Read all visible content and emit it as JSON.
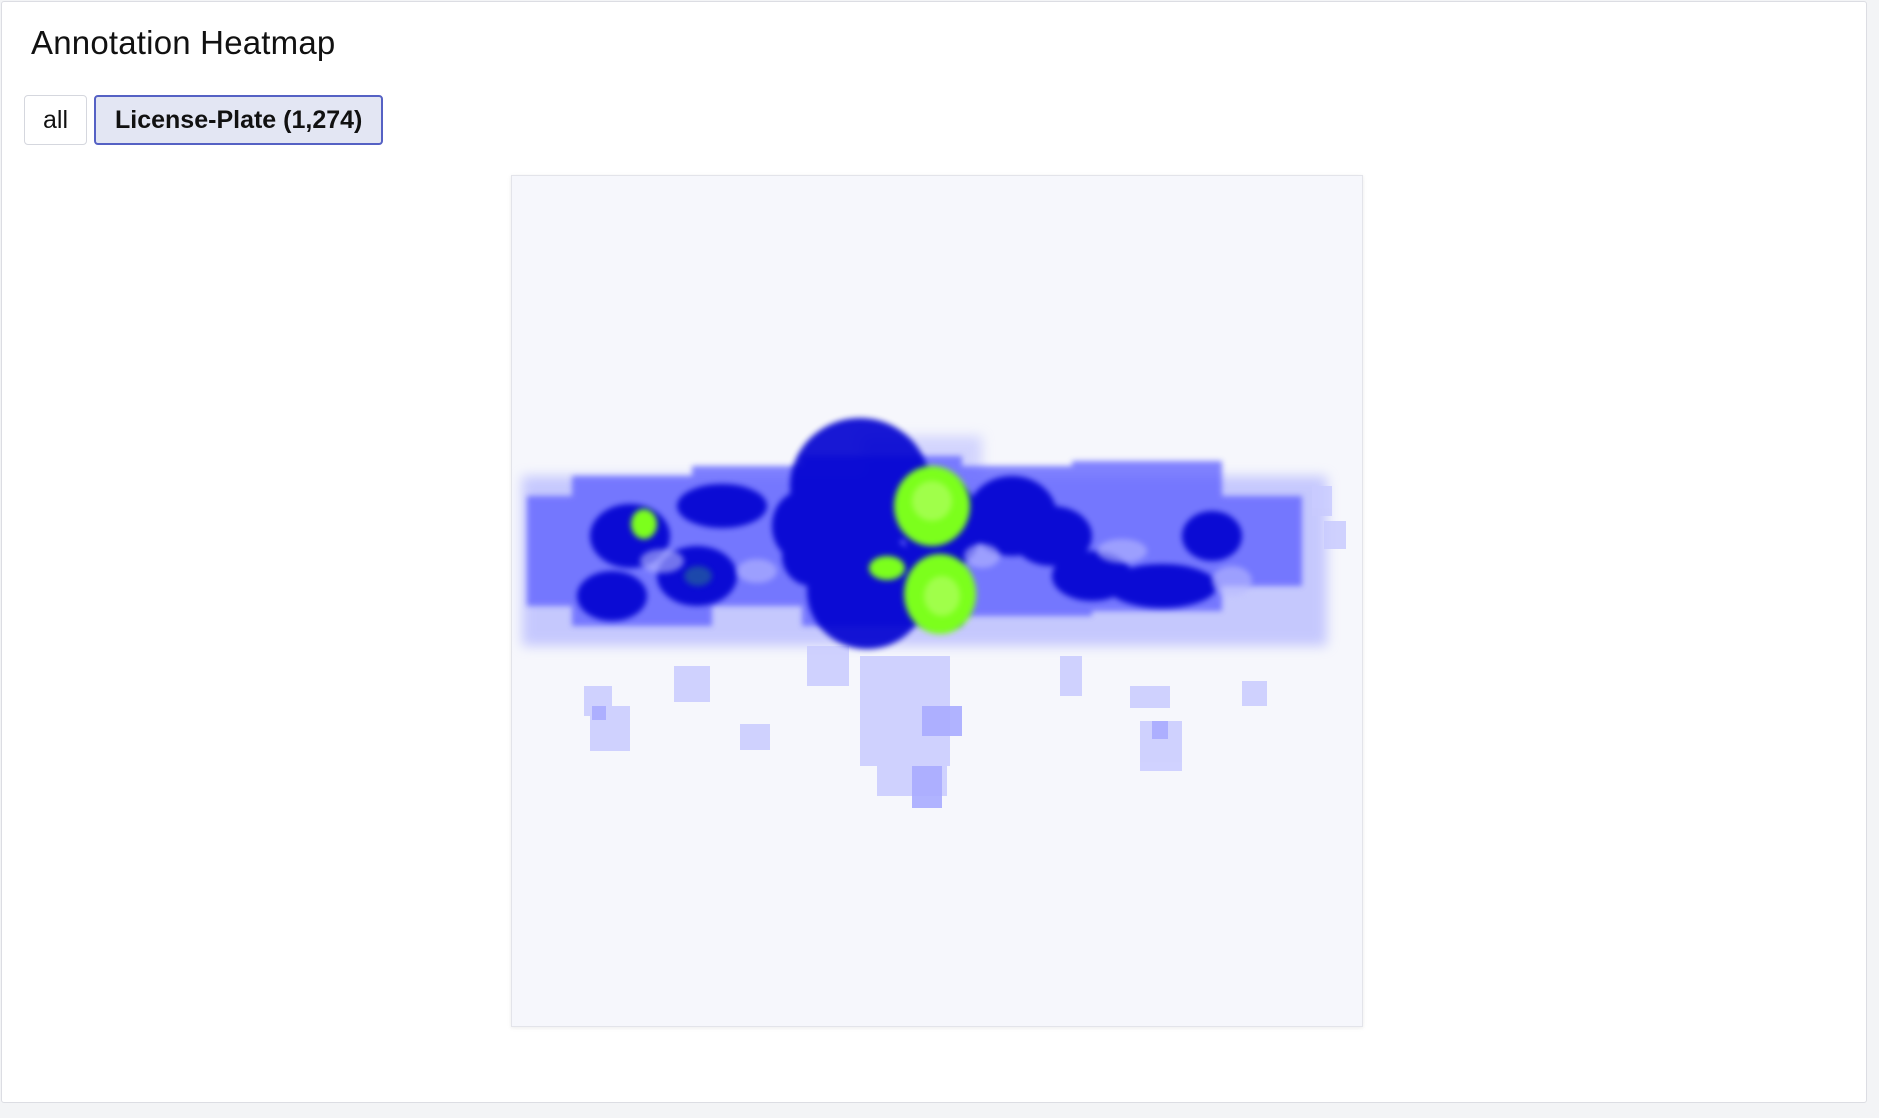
{
  "header": {
    "title": "Annotation Heatmap"
  },
  "filters": {
    "items": [
      {
        "label": "all",
        "active": false
      },
      {
        "label": "License-Plate (1,274)",
        "active": true
      }
    ]
  },
  "heatmap": {
    "class_label": "License-Plate",
    "annotation_count": 1274,
    "colors": {
      "background": "#f6f7fc",
      "low": "#3a3cff",
      "mid": "#0000c8",
      "high": "#7cff1c"
    }
  }
}
